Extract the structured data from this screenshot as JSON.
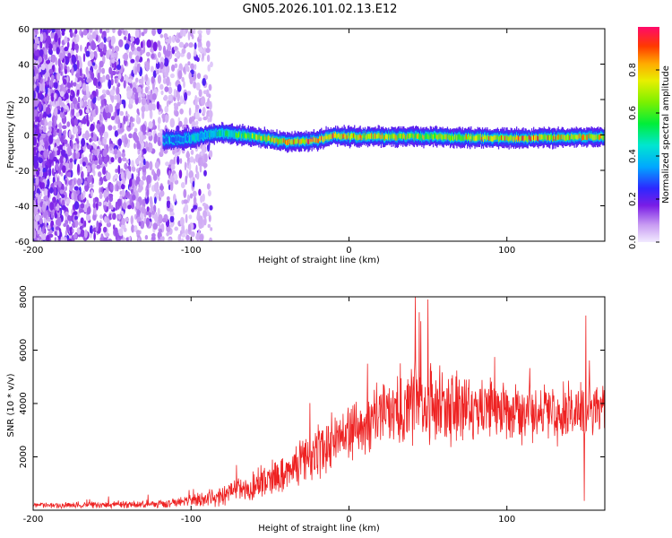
{
  "title": "GN05.2026.101.02.13.E12",
  "chart_data": [
    {
      "type": "heatmap",
      "name": "spectrogram",
      "xlabel": "Height of straight line (km)",
      "ylabel": "Frequency (Hz)",
      "xlim": [
        -200,
        162
      ],
      "ylim": [
        -60,
        60
      ],
      "xticks": [
        -200,
        -100,
        0,
        100
      ],
      "xtick_labels": [
        "-200",
        "-100",
        "0",
        "100"
      ],
      "yticks": [
        -60,
        -40,
        -20,
        0,
        20,
        40,
        60
      ],
      "ytick_labels": [
        "-60",
        "-40",
        "-20",
        "0",
        "20",
        "40",
        "60"
      ],
      "colorbar": {
        "label": "Normalized spectral amplitude",
        "range": [
          0,
          1
        ],
        "ticks": [
          0.0,
          0.2,
          0.4,
          0.6,
          0.8
        ],
        "tick_labels": [
          "0.0",
          "0.2",
          "0.4",
          "0.6",
          "0.8"
        ]
      },
      "noise_region": {
        "x_from": -200,
        "x_to": -95,
        "amplitude": 0.15
      },
      "signal_band": {
        "x_from": -118,
        "x_to": 162,
        "center_freq_points": [
          {
            "x": -118,
            "f": -3
          },
          {
            "x": -100,
            "f": -2
          },
          {
            "x": -90,
            "f": 0
          },
          {
            "x": -80,
            "f": 1
          },
          {
            "x": -60,
            "f": -1
          },
          {
            "x": -40,
            "f": -4
          },
          {
            "x": -20,
            "f": -3
          },
          {
            "x": -10,
            "f": 0
          },
          {
            "x": 0,
            "f": -1
          },
          {
            "x": 50,
            "f": -1
          },
          {
            "x": 100,
            "f": -2
          },
          {
            "x": 162,
            "f": -1
          }
        ],
        "peak_amplitude_points": [
          {
            "x": -118,
            "a": 0.3
          },
          {
            "x": -80,
            "a": 0.45
          },
          {
            "x": -50,
            "a": 0.75
          },
          {
            "x": -20,
            "a": 0.9
          },
          {
            "x": 0,
            "a": 0.8
          },
          {
            "x": 50,
            "a": 0.7
          },
          {
            "x": 100,
            "a": 0.85
          },
          {
            "x": 162,
            "a": 0.75
          }
        ]
      }
    },
    {
      "type": "line",
      "name": "snr",
      "xlabel": "Height of straight line (km)",
      "ylabel": "SNR (10 * v/v)",
      "xlim": [
        -200,
        162
      ],
      "ylim": [
        0,
        8000
      ],
      "xticks": [
        -200,
        -100,
        0,
        100
      ],
      "xtick_labels": [
        "-200",
        "-100",
        "0",
        "100"
      ],
      "yticks": [
        2000,
        4000,
        6000,
        8000
      ],
      "ytick_labels": [
        "2000",
        "4000",
        "6000",
        "8000"
      ],
      "color": "#ee2222",
      "envelope": {
        "x": [
          -200,
          -160,
          -120,
          -100,
          -80,
          -60,
          -40,
          -20,
          0,
          20,
          40,
          60,
          80,
          100,
          130,
          162
        ],
        "mean": [
          180,
          200,
          240,
          350,
          600,
          900,
          1400,
          2200,
          3000,
          3600,
          4000,
          3900,
          3800,
          3700,
          3600,
          3800
        ],
        "spread": [
          130,
          150,
          180,
          280,
          500,
          700,
          900,
          1200,
          1400,
          1500,
          1900,
          1700,
          1500,
          1400,
          1300,
          1200
        ]
      },
      "spikes": [
        {
          "x": 42,
          "y": 8000
        },
        {
          "x": 50,
          "y": 7900
        },
        {
          "x": 150,
          "y": 7300
        },
        {
          "x": 149,
          "y": 350
        }
      ]
    }
  ]
}
